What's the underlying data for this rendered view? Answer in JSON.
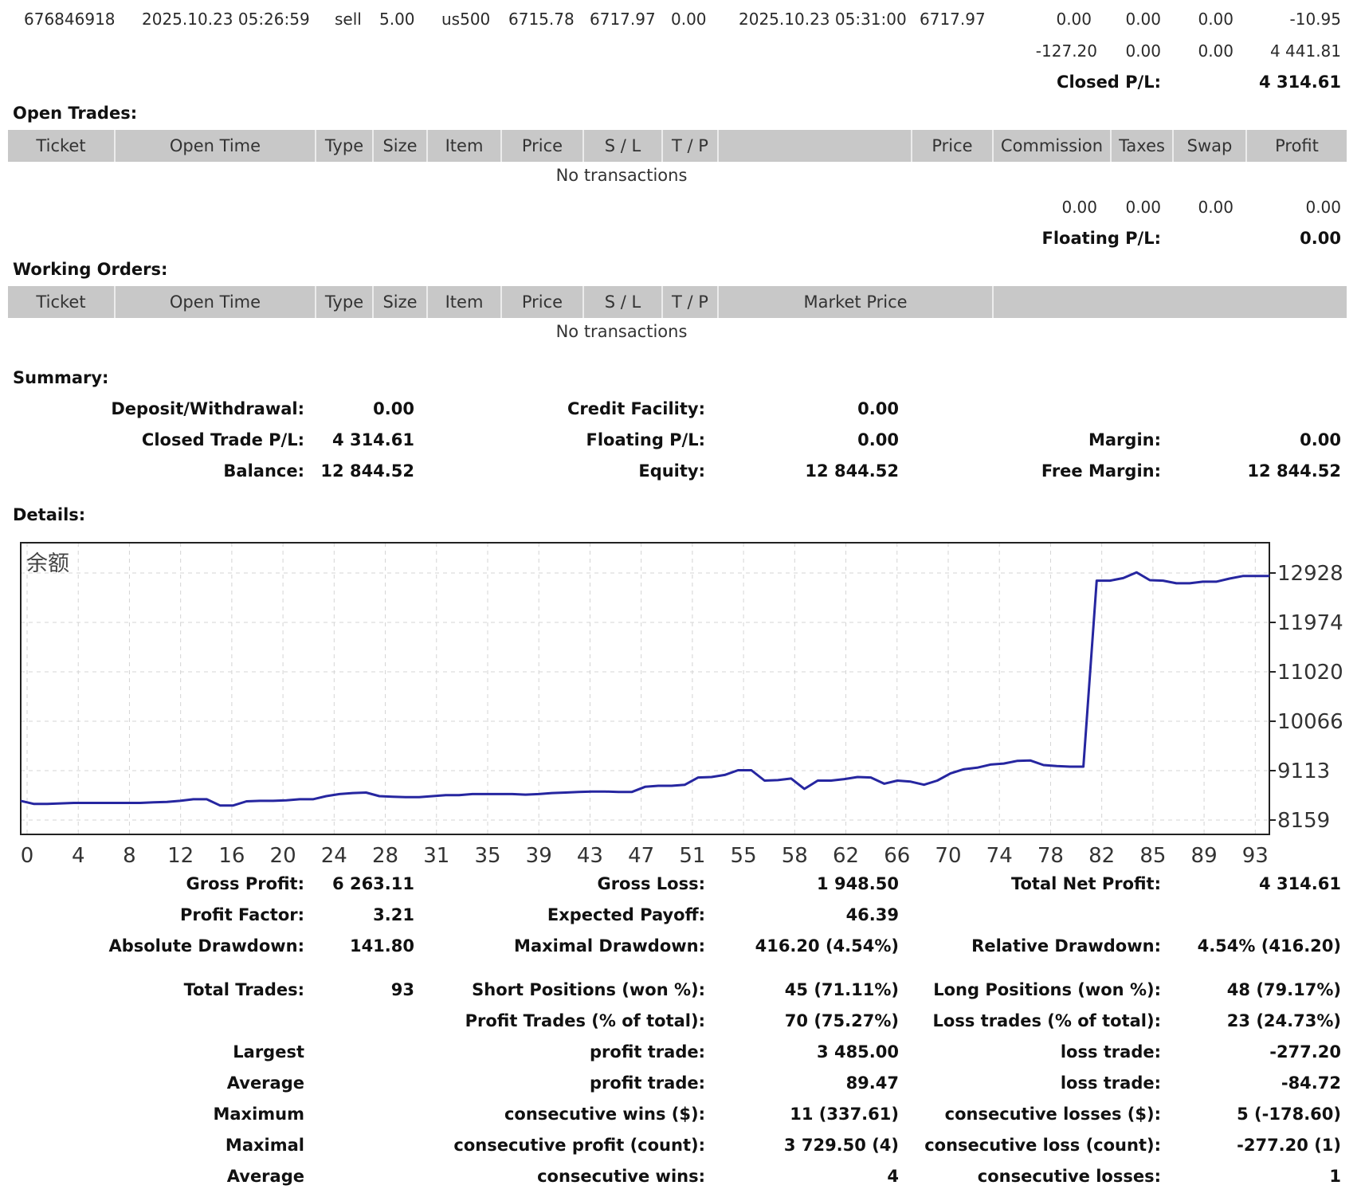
{
  "last_trade": {
    "ticket": "676846918",
    "open_time": "2025.10.23 05:26:59",
    "type": "sell",
    "size": "5.00",
    "item": "us500",
    "price": "6715.78",
    "sl": "6717.97",
    "tp": "0.00",
    "close_time": "2025.10.23 05:31:00",
    "close_price": "6717.97",
    "commission": "0.00",
    "taxes": "0.00",
    "swap": "0.00",
    "profit": "-10.95"
  },
  "closed_totals": {
    "commission": "-127.20",
    "taxes": "0.00",
    "swap": "0.00",
    "profit": "4 441.81"
  },
  "closed_pl": {
    "label": "Closed P/L:",
    "value": "4 314.61"
  },
  "open_trades": {
    "title": "Open Trades:",
    "headers": [
      "Ticket",
      "Open Time",
      "Type",
      "Size",
      "Item",
      "Price",
      "S / L",
      "T / P",
      "",
      "Price",
      "Commission",
      "Taxes",
      "Swap",
      "Profit"
    ],
    "empty": "No transactions",
    "totals": {
      "commission": "0.00",
      "taxes": "0.00",
      "swap": "0.00",
      "profit": "0.00"
    },
    "floating_label": "Floating P/L:",
    "floating_value": "0.00"
  },
  "working_orders": {
    "title": "Working Orders:",
    "headers": [
      "Ticket",
      "Open Time",
      "Type",
      "Size",
      "Item",
      "Price",
      "S / L",
      "T / P",
      "Market Price",
      ""
    ],
    "empty": "No transactions"
  },
  "summary": {
    "title": "Summary:",
    "deposit_label": "Deposit/Withdrawal:",
    "deposit": "0.00",
    "credit_label": "Credit Facility:",
    "credit": "0.00",
    "closed_label": "Closed Trade P/L:",
    "closed": "4 314.61",
    "floating_label": "Floating P/L:",
    "floating": "0.00",
    "margin_label": "Margin:",
    "margin": "0.00",
    "balance_label": "Balance:",
    "balance": "12 844.52",
    "equity_label": "Equity:",
    "equity": "12 844.52",
    "free_margin_label": "Free Margin:",
    "free_margin": "12 844.52"
  },
  "details_title": "Details:",
  "chart_data": {
    "type": "line",
    "title": "余额",
    "x_ticks": [
      "0",
      "4",
      "8",
      "12",
      "16",
      "20",
      "24",
      "28",
      "31",
      "35",
      "39",
      "43",
      "47",
      "51",
      "55",
      "58",
      "62",
      "66",
      "70",
      "74",
      "78",
      "82",
      "85",
      "89",
      "93"
    ],
    "y_ticks": [
      12928,
      11974,
      11020,
      10066,
      9113,
      8159
    ],
    "ylim": [
      8159,
      12928
    ],
    "xlim": [
      0,
      94
    ],
    "grid": true,
    "color": "#2626a0",
    "x": [
      0,
      1,
      2,
      3,
      4,
      5,
      6,
      7,
      8,
      9,
      10,
      11,
      12,
      13,
      14,
      15,
      16,
      17,
      18,
      19,
      20,
      21,
      22,
      23,
      24,
      25,
      26,
      27,
      28,
      29,
      30,
      31,
      32,
      33,
      34,
      35,
      36,
      37,
      38,
      39,
      40,
      41,
      42,
      43,
      44,
      45,
      46,
      47,
      48,
      49,
      50,
      51,
      52,
      53,
      54,
      55,
      56,
      57,
      58,
      59,
      60,
      61,
      62,
      63,
      64,
      65,
      66,
      67,
      68,
      69,
      70,
      71,
      72,
      73,
      74,
      75,
      76,
      77,
      78,
      79,
      80,
      81,
      82,
      83,
      84,
      85,
      86,
      87,
      88,
      89,
      90,
      91,
      92,
      93,
      94
    ],
    "y": [
      8530,
      8470,
      8470,
      8480,
      8490,
      8490,
      8490,
      8490,
      8490,
      8490,
      8500,
      8510,
      8530,
      8560,
      8560,
      8440,
      8440,
      8520,
      8530,
      8530,
      8540,
      8560,
      8560,
      8620,
      8660,
      8680,
      8690,
      8620,
      8610,
      8600,
      8600,
      8620,
      8640,
      8640,
      8660,
      8660,
      8660,
      8660,
      8650,
      8660,
      8680,
      8690,
      8700,
      8710,
      8710,
      8700,
      8700,
      8800,
      8820,
      8820,
      8840,
      8980,
      8990,
      9030,
      9120,
      9120,
      8920,
      8930,
      8960,
      8760,
      8920,
      8920,
      8950,
      8990,
      8980,
      8860,
      8920,
      8900,
      8840,
      8920,
      9060,
      9140,
      9170,
      9230,
      9250,
      9300,
      9310,
      9220,
      9200,
      9190,
      9190,
      12780,
      12780,
      12830,
      12940,
      12790,
      12780,
      12730,
      12730,
      12760,
      12760,
      12820,
      12870,
      12870,
      12870
    ]
  },
  "stats": {
    "gross_profit_label": "Gross Profit:",
    "gross_profit": "6 263.11",
    "gross_loss_label": "Gross Loss:",
    "gross_loss": "1 948.50",
    "total_net_label": "Total Net Profit:",
    "total_net": "4 314.61",
    "profit_factor_label": "Profit Factor:",
    "profit_factor": "3.21",
    "expected_payoff_label": "Expected Payoff:",
    "expected_payoff": "46.39",
    "abs_dd_label": "Absolute Drawdown:",
    "abs_dd": "141.80",
    "max_dd_label": "Maximal Drawdown:",
    "max_dd": "416.20 (4.54%)",
    "rel_dd_label": "Relative Drawdown:",
    "rel_dd": "4.54% (416.20)",
    "total_trades_label": "Total Trades:",
    "total_trades": "93",
    "short_label": "Short Positions (won %):",
    "short": "45 (71.11%)",
    "long_label": "Long Positions (won %):",
    "long": "48 (79.17%)",
    "profit_trades_label": "Profit Trades (% of total):",
    "profit_trades": "70 (75.27%)",
    "loss_trades_label": "Loss trades (% of total):",
    "loss_trades": "23 (24.73%)",
    "largest_label": "Largest",
    "largest_profit_label": "profit trade:",
    "largest_profit": "3 485.00",
    "largest_loss_label": "loss trade:",
    "largest_loss": "-277.20",
    "average_label": "Average",
    "avg_profit_label": "profit trade:",
    "avg_profit": "89.47",
    "avg_loss_label": "loss trade:",
    "avg_loss": "-84.72",
    "maximum_label": "Maximum",
    "max_wins_label": "consecutive wins ($):",
    "max_wins": "11 (337.61)",
    "max_losses_label": "consecutive losses ($):",
    "max_losses": "5 (-178.60)",
    "maximal_label": "Maximal",
    "maximal_profit_label": "consecutive profit (count):",
    "maximal_profit": "3 729.50 (4)",
    "maximal_loss_label": "consecutive loss (count):",
    "maximal_loss": "-277.20 (1)",
    "average2_label": "Average",
    "avg_wins_label": "consecutive wins:",
    "avg_wins": "4",
    "avg_losses_label": "consecutive losses:",
    "avg_losses": "1"
  }
}
